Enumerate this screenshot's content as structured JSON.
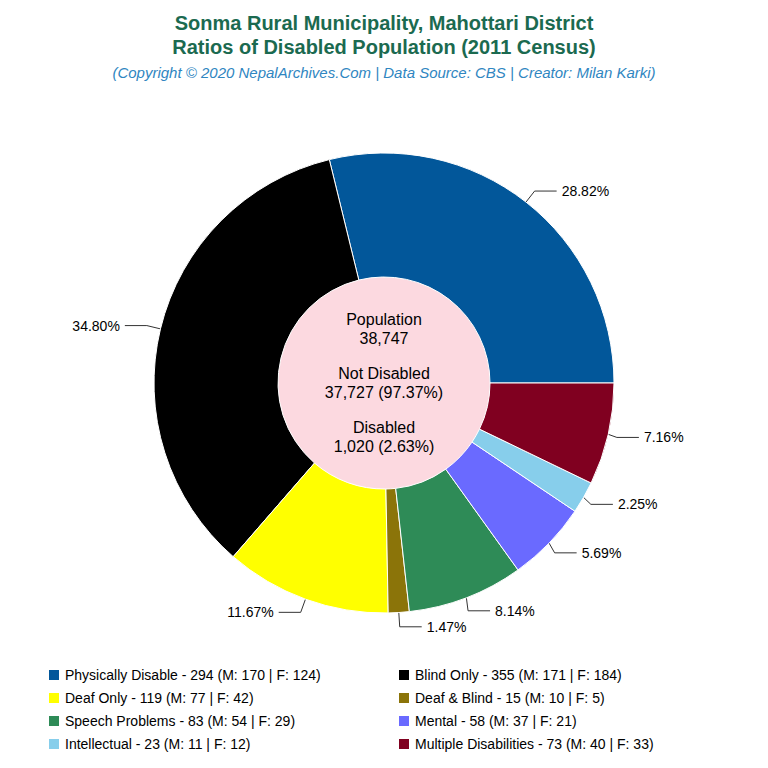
{
  "chart_data": {
    "type": "pie",
    "title": "Sonma Rural Municipality, Mahottari District\nRatios of Disabled Population (2011 Census)",
    "subtitle": "(Copyright © 2020 NepalArchives.Com | Data Source: CBS | Creator: Milan Karki)",
    "categories": [
      "Physically Disable - 294 (M: 170 | F: 124)",
      "Blind Only - 355 (M: 171 | F: 184)",
      "Deaf Only - 119 (M: 77 | F: 42)",
      "Deaf & Blind - 15 (M: 10 | F: 5)",
      "Speech Problems - 83 (M: 54 | F: 29)",
      "Mental - 58 (M: 37 | F: 21)",
      "Intellectual - 23 (M: 11 | F: 12)",
      "Multiple Disabilities - 73 (M: 40 | F: 33)"
    ],
    "values": [
      28.82,
      34.8,
      11.67,
      1.47,
      8.14,
      5.69,
      2.25,
      7.16
    ],
    "value_labels": [
      "28.82%",
      "34.80%",
      "11.67%",
      "1.47%",
      "8.14%",
      "5.69%",
      "2.25%",
      "7.16%"
    ],
    "colors": [
      "#02579a",
      "#000000",
      "#ffff00",
      "#8b7409",
      "#2e8b57",
      "#6a6aff",
      "#87ceeb",
      "#800020"
    ],
    "data_labels": true,
    "legend": "bottom",
    "center_text": [
      {
        "label": "Population",
        "value": "38,747"
      },
      {
        "label": "Not Disabled",
        "value": "37,727 (97.37%)"
      },
      {
        "label": "Disabled",
        "value": "1,020 (2.63%)"
      }
    ]
  }
}
